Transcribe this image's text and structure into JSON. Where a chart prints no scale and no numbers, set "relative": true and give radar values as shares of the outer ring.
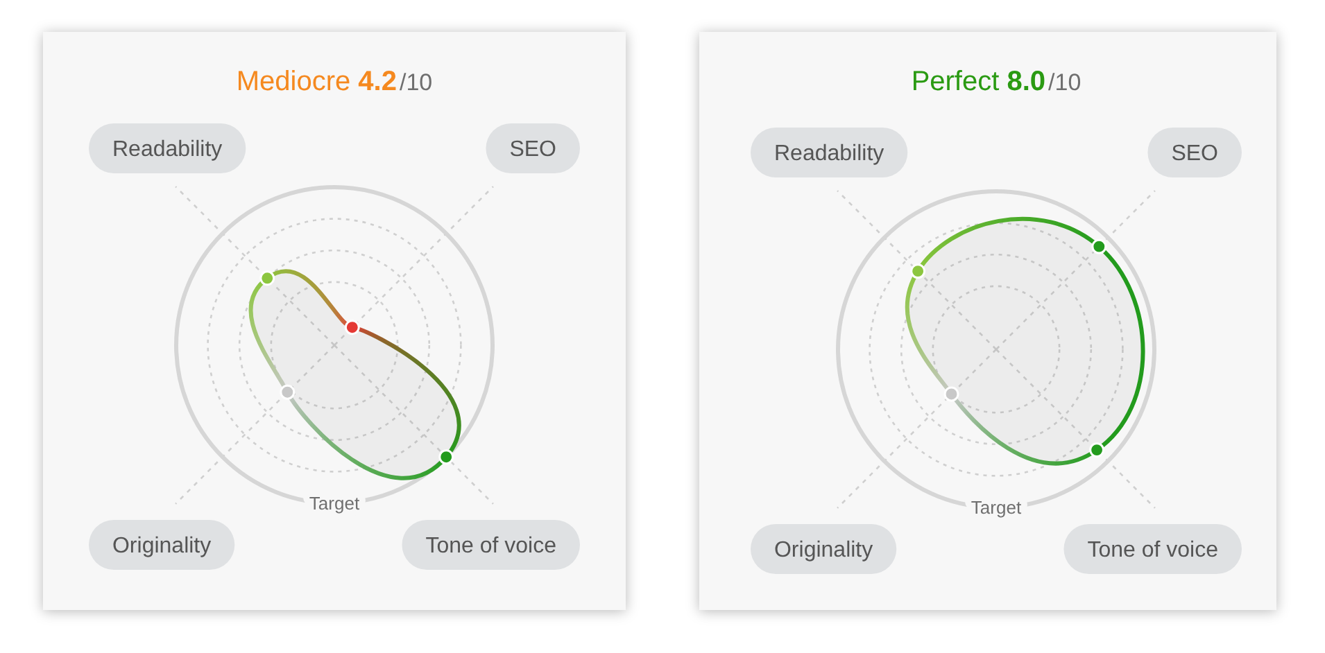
{
  "chart_data": [
    {
      "type": "radar",
      "title": "Mediocre 4.2/10",
      "categories": [
        "SEO",
        "Tone of voice",
        "Originality",
        "Readability"
      ],
      "values": [
        0.16,
        1.0,
        0.42,
        0.6
      ],
      "colors": [
        "#e53935",
        "#239b1d",
        "#c8c8c8",
        "#8cc63f"
      ],
      "relative": true,
      "annotations": [
        "Target"
      ],
      "grid": true,
      "marker": "circle"
    },
    {
      "type": "radar",
      "title": "Perfect 8.0/10",
      "categories": [
        "SEO",
        "Tone of voice",
        "Originality",
        "Readability"
      ],
      "values": [
        0.92,
        0.9,
        0.4,
        0.7
      ],
      "colors": [
        "#239b1d",
        "#239b1d",
        "#c8c8c8",
        "#8cc63f"
      ],
      "relative": true,
      "annotations": [
        "Target"
      ],
      "grid": true,
      "marker": "circle"
    }
  ]
}
